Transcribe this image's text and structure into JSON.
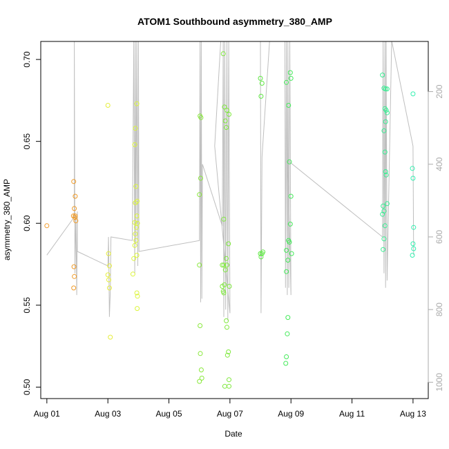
{
  "chart_data": {
    "type": "scatter",
    "title": "ATOM1 Southbound asymmetry_380_AMP",
    "xlabel": "Date",
    "ylabel": "asymmetry_380_AMP",
    "x_unit": "day of August",
    "xlim": [
      0.8,
      13.5
    ],
    "ylim": [
      0.493,
      0.711
    ],
    "x_ticks": [
      {
        "value": 1,
        "label": "Aug 01"
      },
      {
        "value": 3,
        "label": "Aug 03"
      },
      {
        "value": 5,
        "label": "Aug 05"
      },
      {
        "value": 7,
        "label": "Aug 07"
      },
      {
        "value": 9,
        "label": "Aug 09"
      },
      {
        "value": 11,
        "label": "Aug 11"
      },
      {
        "value": 13,
        "label": "Aug 13"
      }
    ],
    "y_ticks": [
      {
        "value": 0.5,
        "label": "0.50"
      },
      {
        "value": 0.55,
        "label": "0.55"
      },
      {
        "value": 0.6,
        "label": "0.60"
      },
      {
        "value": 0.65,
        "label": "0.65"
      },
      {
        "value": 0.7,
        "label": "0.70"
      }
    ],
    "secondary_y": {
      "label": "",
      "lim": [
        1045,
        62
      ],
      "ticks": [
        {
          "value": 200,
          "label": "200"
        },
        {
          "value": 400,
          "label": "400"
        },
        {
          "value": 600,
          "label": "600"
        },
        {
          "value": 800,
          "label": "800"
        },
        {
          "value": 1000,
          "label": "1000"
        }
      ],
      "line_color": "#bebebe"
    },
    "line_points": [
      [
        1.0,
        650
      ],
      [
        1.9,
        545
      ],
      [
        1.9,
        60
      ],
      [
        1.92,
        700
      ],
      [
        1.95,
        540
      ],
      [
        1.98,
        760
      ],
      [
        2.0,
        530
      ],
      [
        2.0,
        640
      ],
      [
        3.0,
        680
      ],
      [
        3.02,
        600
      ],
      [
        3.05,
        820
      ],
      [
        3.08,
        750
      ],
      [
        3.1,
        600
      ],
      [
        3.8,
        610
      ],
      [
        3.85,
        60
      ],
      [
        3.88,
        700
      ],
      [
        3.9,
        60
      ],
      [
        3.92,
        620
      ],
      [
        3.95,
        60
      ],
      [
        3.98,
        680
      ],
      [
        4.0,
        60
      ],
      [
        4.02,
        640
      ],
      [
        6.0,
        610
      ],
      [
        6.02,
        60
      ],
      [
        6.04,
        780
      ],
      [
        6.06,
        60
      ],
      [
        6.08,
        770
      ],
      [
        6.1,
        400
      ],
      [
        6.75,
        570
      ],
      [
        6.78,
        60
      ],
      [
        6.8,
        820
      ],
      [
        6.83,
        60
      ],
      [
        6.86,
        800
      ],
      [
        6.9,
        60
      ],
      [
        6.93,
        830
      ],
      [
        6.96,
        60
      ],
      [
        7.0,
        810
      ],
      [
        6.5,
        350
      ],
      [
        6.7,
        60
      ],
      [
        8.0,
        60
      ],
      [
        8.02,
        810
      ],
      [
        8.05,
        380
      ],
      [
        8.3,
        60
      ],
      [
        8.8,
        60
      ],
      [
        8.82,
        740
      ],
      [
        8.85,
        60
      ],
      [
        8.88,
        760
      ],
      [
        8.9,
        60
      ],
      [
        8.93,
        740
      ],
      [
        8.96,
        60
      ],
      [
        9.0,
        760
      ],
      [
        8.9,
        390
      ],
      [
        12.0,
        600
      ],
      [
        12.02,
        60
      ],
      [
        12.05,
        700
      ],
      [
        12.08,
        60
      ],
      [
        12.1,
        740
      ],
      [
        12.12,
        60
      ],
      [
        12.15,
        720
      ],
      [
        12.3,
        60
      ],
      [
        13.0,
        350
      ],
      [
        13.02,
        650
      ]
    ],
    "series": [
      {
        "name": "Aug 01",
        "color": "#f29c2c",
        "points": [
          [
            1.0,
            0.5985
          ]
        ]
      },
      {
        "name": "Aug 02",
        "color": "#f09a26",
        "points": [
          [
            1.88,
            0.6255
          ],
          [
            1.9,
            0.609
          ],
          [
            1.93,
            0.6165
          ],
          [
            1.87,
            0.6045
          ],
          [
            1.92,
            0.6035
          ],
          [
            1.95,
            0.6015
          ],
          [
            1.89,
            0.5735
          ],
          [
            1.9,
            0.5675
          ],
          [
            1.88,
            0.5605
          ],
          [
            1.93,
            0.6045
          ]
        ]
      },
      {
        "name": "Aug 03",
        "color": "#e6ee3c",
        "points": [
          [
            3.0,
            0.672
          ],
          [
            3.02,
            0.5815
          ],
          [
            3.05,
            0.574
          ],
          [
            3.0,
            0.5685
          ],
          [
            3.03,
            0.5655
          ],
          [
            3.05,
            0.5605
          ],
          [
            3.08,
            0.5305
          ]
        ]
      },
      {
        "name": "Aug 04",
        "color": "#dcf53a",
        "points": [
          [
            3.95,
            0.673
          ],
          [
            3.9,
            0.658
          ],
          [
            3.88,
            0.648
          ],
          [
            3.92,
            0.6225
          ],
          [
            3.96,
            0.6135
          ],
          [
            3.9,
            0.6125
          ],
          [
            3.95,
            0.6045
          ],
          [
            3.88,
            0.6005
          ],
          [
            3.93,
            0.5975
          ],
          [
            3.97,
            0.6
          ],
          [
            3.9,
            0.5935
          ],
          [
            3.92,
            0.5895
          ],
          [
            3.88,
            0.5865
          ],
          [
            3.95,
            0.5805
          ],
          [
            3.85,
            0.5785
          ],
          [
            3.82,
            0.569
          ],
          [
            3.95,
            0.5575
          ],
          [
            3.97,
            0.5555
          ],
          [
            3.96,
            0.548
          ]
        ]
      },
      {
        "name": "Aug 06",
        "color": "#88e83a",
        "points": [
          [
            6.02,
            0.6655
          ],
          [
            6.05,
            0.6645
          ],
          [
            6.0,
            0.6175
          ],
          [
            6.04,
            0.6275
          ],
          [
            6.0,
            0.5745
          ],
          [
            6.02,
            0.5375
          ],
          [
            6.03,
            0.5205
          ],
          [
            6.06,
            0.5105
          ],
          [
            6.08,
            0.5055
          ],
          [
            6.0,
            0.5035
          ]
        ]
      },
      {
        "name": "Aug 07",
        "color": "#7ee83c",
        "points": [
          [
            6.78,
            0.7035
          ],
          [
            6.82,
            0.671
          ],
          [
            6.9,
            0.669
          ],
          [
            6.97,
            0.6665
          ],
          [
            6.85,
            0.6625
          ],
          [
            6.88,
            0.6585
          ],
          [
            6.8,
            0.6025
          ],
          [
            6.95,
            0.5875
          ],
          [
            6.75,
            0.5745
          ],
          [
            6.8,
            0.5745
          ],
          [
            6.88,
            0.5785
          ],
          [
            6.9,
            0.5745
          ],
          [
            6.85,
            0.5715
          ],
          [
            6.75,
            0.5615
          ],
          [
            6.82,
            0.5625
          ],
          [
            6.78,
            0.5585
          ],
          [
            6.8,
            0.5575
          ],
          [
            6.98,
            0.5615
          ],
          [
            6.88,
            0.5405
          ],
          [
            6.9,
            0.5365
          ],
          [
            6.95,
            0.5215
          ],
          [
            6.92,
            0.5195
          ],
          [
            6.97,
            0.5045
          ],
          [
            6.83,
            0.5005
          ],
          [
            6.97,
            0.5005
          ]
        ]
      },
      {
        "name": "Aug 08",
        "color": "#5ee842",
        "points": [
          [
            8.0,
            0.6885
          ],
          [
            8.05,
            0.6855
          ],
          [
            8.02,
            0.6775
          ],
          [
            8.08,
            0.5825
          ],
          [
            8.05,
            0.5815
          ],
          [
            8.02,
            0.5795
          ],
          [
            8.0,
            0.5815
          ]
        ]
      },
      {
        "name": "Aug 09",
        "color": "#44ea5a",
        "points": [
          [
            8.98,
            0.692
          ],
          [
            8.85,
            0.686
          ],
          [
            9.0,
            0.6885
          ],
          [
            8.92,
            0.672
          ],
          [
            8.95,
            0.6375
          ],
          [
            9.0,
            0.6165
          ],
          [
            8.98,
            0.5995
          ],
          [
            8.92,
            0.5895
          ],
          [
            8.95,
            0.5885
          ],
          [
            8.85,
            0.5835
          ],
          [
            9.02,
            0.5815
          ],
          [
            8.9,
            0.5775
          ],
          [
            8.85,
            0.5705
          ],
          [
            8.9,
            0.5425
          ],
          [
            8.88,
            0.5325
          ],
          [
            8.85,
            0.5185
          ],
          [
            8.83,
            0.5145
          ]
        ]
      },
      {
        "name": "Aug 12",
        "color": "#36ee92",
        "points": [
          [
            12.0,
            0.6905
          ],
          [
            12.05,
            0.6825
          ],
          [
            12.1,
            0.682
          ],
          [
            12.15,
            0.682
          ],
          [
            12.08,
            0.67
          ],
          [
            12.12,
            0.669
          ],
          [
            12.15,
            0.6675
          ],
          [
            12.1,
            0.662
          ],
          [
            12.05,
            0.6565
          ],
          [
            12.08,
            0.6435
          ],
          [
            12.1,
            0.6315
          ],
          [
            12.12,
            0.6295
          ],
          [
            12.15,
            0.612
          ],
          [
            12.02,
            0.6105
          ],
          [
            12.05,
            0.6075
          ],
          [
            12.0,
            0.6055
          ],
          [
            12.08,
            0.5985
          ],
          [
            12.05,
            0.5905
          ],
          [
            12.02,
            0.584
          ]
        ]
      },
      {
        "name": "Aug 13",
        "color": "#32f0b0",
        "points": [
          [
            13.0,
            0.679
          ],
          [
            12.98,
            0.6335
          ],
          [
            13.0,
            0.6275
          ],
          [
            13.02,
            0.5975
          ],
          [
            13.0,
            0.5875
          ],
          [
            13.02,
            0.5845
          ],
          [
            12.98,
            0.5805
          ]
        ]
      }
    ]
  }
}
